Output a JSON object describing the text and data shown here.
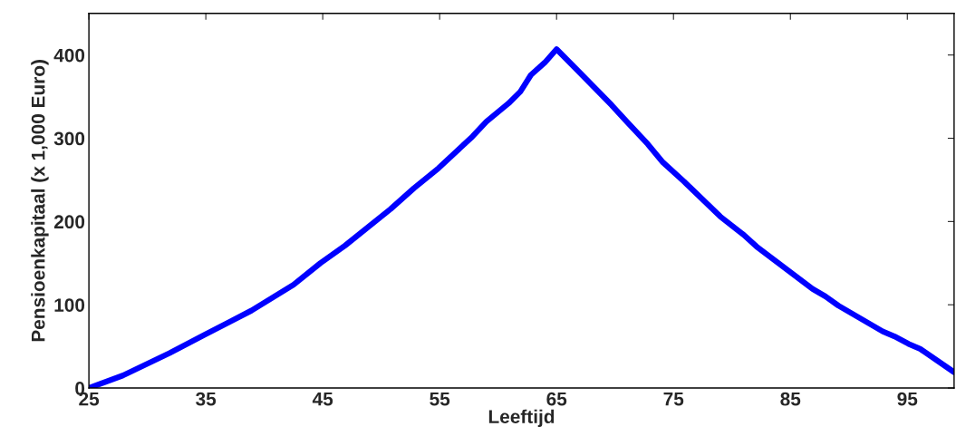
{
  "chart_data": {
    "type": "line",
    "xlabel": "Leeftijd",
    "ylabel": "Pensioenkapitaal (x 1,000 Euro)",
    "xlim": [
      25,
      99
    ],
    "xticks": [
      25,
      35,
      45,
      55,
      65,
      75,
      85,
      95
    ],
    "ylim": [
      0,
      450
    ],
    "yticks": [
      0,
      100,
      200,
      300,
      400
    ],
    "grid": false,
    "marker": "none",
    "line_style": "solid",
    "x": [
      25,
      27.9,
      31.9,
      34.9,
      38.9,
      42.5,
      44.8,
      46.9,
      50.8,
      52.8,
      54.9,
      57.8,
      59.0,
      60.9,
      61.9,
      62.8,
      64.0,
      65,
      66.9,
      69.7,
      71.0,
      72.8,
      74.1,
      75.9,
      79.0,
      81.0,
      82.1,
      86.9,
      88.0,
      89.1,
      92.9,
      93.9,
      95.1,
      96.1,
      99.0
    ],
    "series": [
      {
        "color": "#0000ff",
        "values": [
          0,
          15,
          42,
          64,
          93,
          124,
          150,
          171,
          215,
          240,
          264,
          302,
          320,
          342,
          356,
          376,
          391,
          407,
          380,
          340,
          320,
          293,
          271,
          248,
          206,
          184,
          170,
          119,
          110,
          99,
          68,
          62,
          53,
          47,
          19
        ]
      }
    ]
  }
}
